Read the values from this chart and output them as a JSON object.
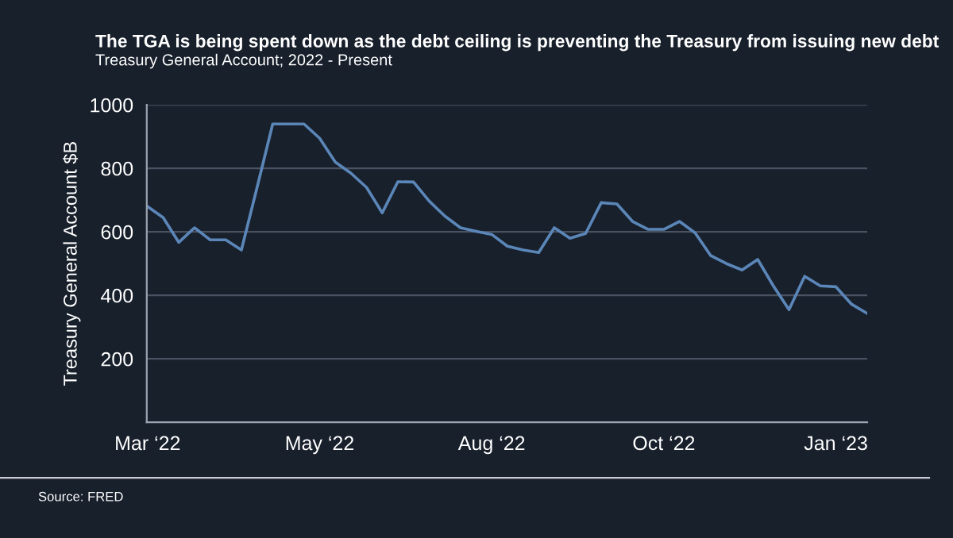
{
  "chart_data": {
    "type": "line",
    "title": "The TGA is being spent down as the debt ceiling is preventing the Treasury from issuing new debt",
    "subtitle": "Treasury General Account; 2022 - Present",
    "ylabel": "Treasury General Account $B",
    "annotations": [
      "Source: FRED"
    ],
    "categories": [
      "Mar ‘22",
      null,
      null,
      null,
      null,
      null,
      null,
      null,
      null,
      null,
      null,
      "May ‘22",
      null,
      null,
      null,
      null,
      null,
      null,
      null,
      null,
      null,
      null,
      "Aug ‘22",
      null,
      null,
      null,
      null,
      null,
      null,
      null,
      null,
      null,
      null,
      "Oct ‘22",
      null,
      null,
      null,
      null,
      null,
      null,
      null,
      null,
      null,
      null,
      "Jan ‘23",
      null,
      null
    ],
    "series": [
      {
        "color": "#5b86b8",
        "values": [
          680,
          645,
          567,
          613,
          575,
          575,
          543,
          740,
          940,
          940,
          940,
          895,
          820,
          785,
          740,
          660,
          758,
          757,
          697,
          650,
          613,
          602,
          592,
          555,
          543,
          535,
          613,
          580,
          595,
          692,
          688,
          633,
          608,
          608,
          633,
          597,
          525,
          500,
          480,
          513,
          430,
          355,
          460,
          430,
          427,
          372,
          343
        ]
      }
    ],
    "ylim": [
      0,
      1000
    ],
    "yticks": [
      200,
      400,
      600,
      800,
      1000
    ],
    "grid": "y",
    "marker": "none",
    "line_style": "solid"
  }
}
